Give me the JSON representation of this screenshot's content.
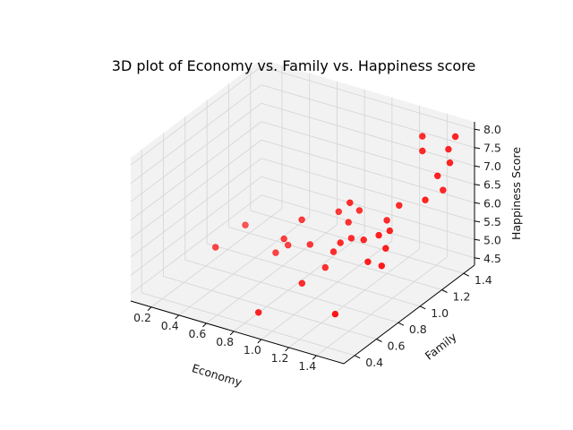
{
  "chart_data": {
    "type": "scatter",
    "projection": "3d",
    "title": "3D plot of Economy vs. Family vs. Happiness score",
    "xlabel": "Economy",
    "ylabel": "Family",
    "zlabel": "Happiness Score",
    "xlim": [
      0.05,
      1.6
    ],
    "ylim": [
      0.3,
      1.5
    ],
    "zlim": [
      4.3,
      8.2
    ],
    "xticks": [
      "0.2",
      "0.4",
      "0.6",
      "0.8",
      "1.0",
      "1.2",
      "1.4"
    ],
    "yticks": [
      "0.4",
      "0.6",
      "0.8",
      "1.0",
      "1.2",
      "1.4"
    ],
    "zticks": [
      "4.5",
      "5.0",
      "5.5",
      "6.0",
      "6.5",
      "7.0",
      "7.5",
      "8.0"
    ],
    "grid": true,
    "marker_color": "#ff0000",
    "pane_color": "#f2f2f2",
    "points": [
      {
        "x": 0.9,
        "y": 0.4,
        "z": 4.7
      },
      {
        "x": 0.25,
        "y": 1.1,
        "z": 4.8
      },
      {
        "x": 0.55,
        "y": 1.0,
        "z": 4.6
      },
      {
        "x": 0.6,
        "y": 1.05,
        "z": 4.75
      },
      {
        "x": 0.9,
        "y": 0.8,
        "z": 4.6
      },
      {
        "x": 0.95,
        "y": 0.95,
        "z": 4.75
      },
      {
        "x": 1.3,
        "y": 0.6,
        "z": 4.65
      },
      {
        "x": 0.8,
        "y": 1.0,
        "z": 5.1
      },
      {
        "x": 1.05,
        "y": 0.9,
        "z": 5.4
      },
      {
        "x": 1.1,
        "y": 1.0,
        "z": 5.6
      },
      {
        "x": 1.15,
        "y": 1.05,
        "z": 5.5
      },
      {
        "x": 1.3,
        "y": 0.9,
        "z": 5.4
      },
      {
        "x": 1.35,
        "y": 1.0,
        "z": 5.6
      },
      {
        "x": 1.3,
        "y": 1.1,
        "z": 5.8
      },
      {
        "x": 1.4,
        "y": 0.9,
        "z": 5.4
      },
      {
        "x": 0.65,
        "y": 0.95,
        "z": 5.2
      },
      {
        "x": 0.7,
        "y": 1.05,
        "z": 5.55
      },
      {
        "x": 0.85,
        "y": 1.2,
        "z": 5.6
      },
      {
        "x": 1.0,
        "y": 1.2,
        "z": 5.8
      },
      {
        "x": 1.2,
        "y": 1.2,
        "z": 5.75
      },
      {
        "x": 1.25,
        "y": 1.25,
        "z": 6.1
      },
      {
        "x": 1.3,
        "y": 1.0,
        "z": 5.9
      },
      {
        "x": 1.05,
        "y": 1.05,
        "z": 6.4
      },
      {
        "x": 1.45,
        "y": 1.4,
        "z": 6.4
      },
      {
        "x": 0.35,
        "y": 0.7,
        "z": 5.2
      },
      {
        "x": 1.4,
        "y": 1.3,
        "z": 6.3
      },
      {
        "x": 1.45,
        "y": 1.35,
        "z": 6.9
      },
      {
        "x": 1.3,
        "y": 1.4,
        "z": 7.3
      },
      {
        "x": 1.45,
        "y": 1.45,
        "z": 7.4
      },
      {
        "x": 1.3,
        "y": 1.4,
        "z": 7.7
      },
      {
        "x": 1.5,
        "y": 1.45,
        "z": 7.8
      },
      {
        "x": 1.5,
        "y": 1.4,
        "z": 7.2
      },
      {
        "x": 1.0,
        "y": 1.1,
        "z": 5.7
      },
      {
        "x": 1.1,
        "y": 0.9,
        "z": 5.7
      }
    ]
  }
}
